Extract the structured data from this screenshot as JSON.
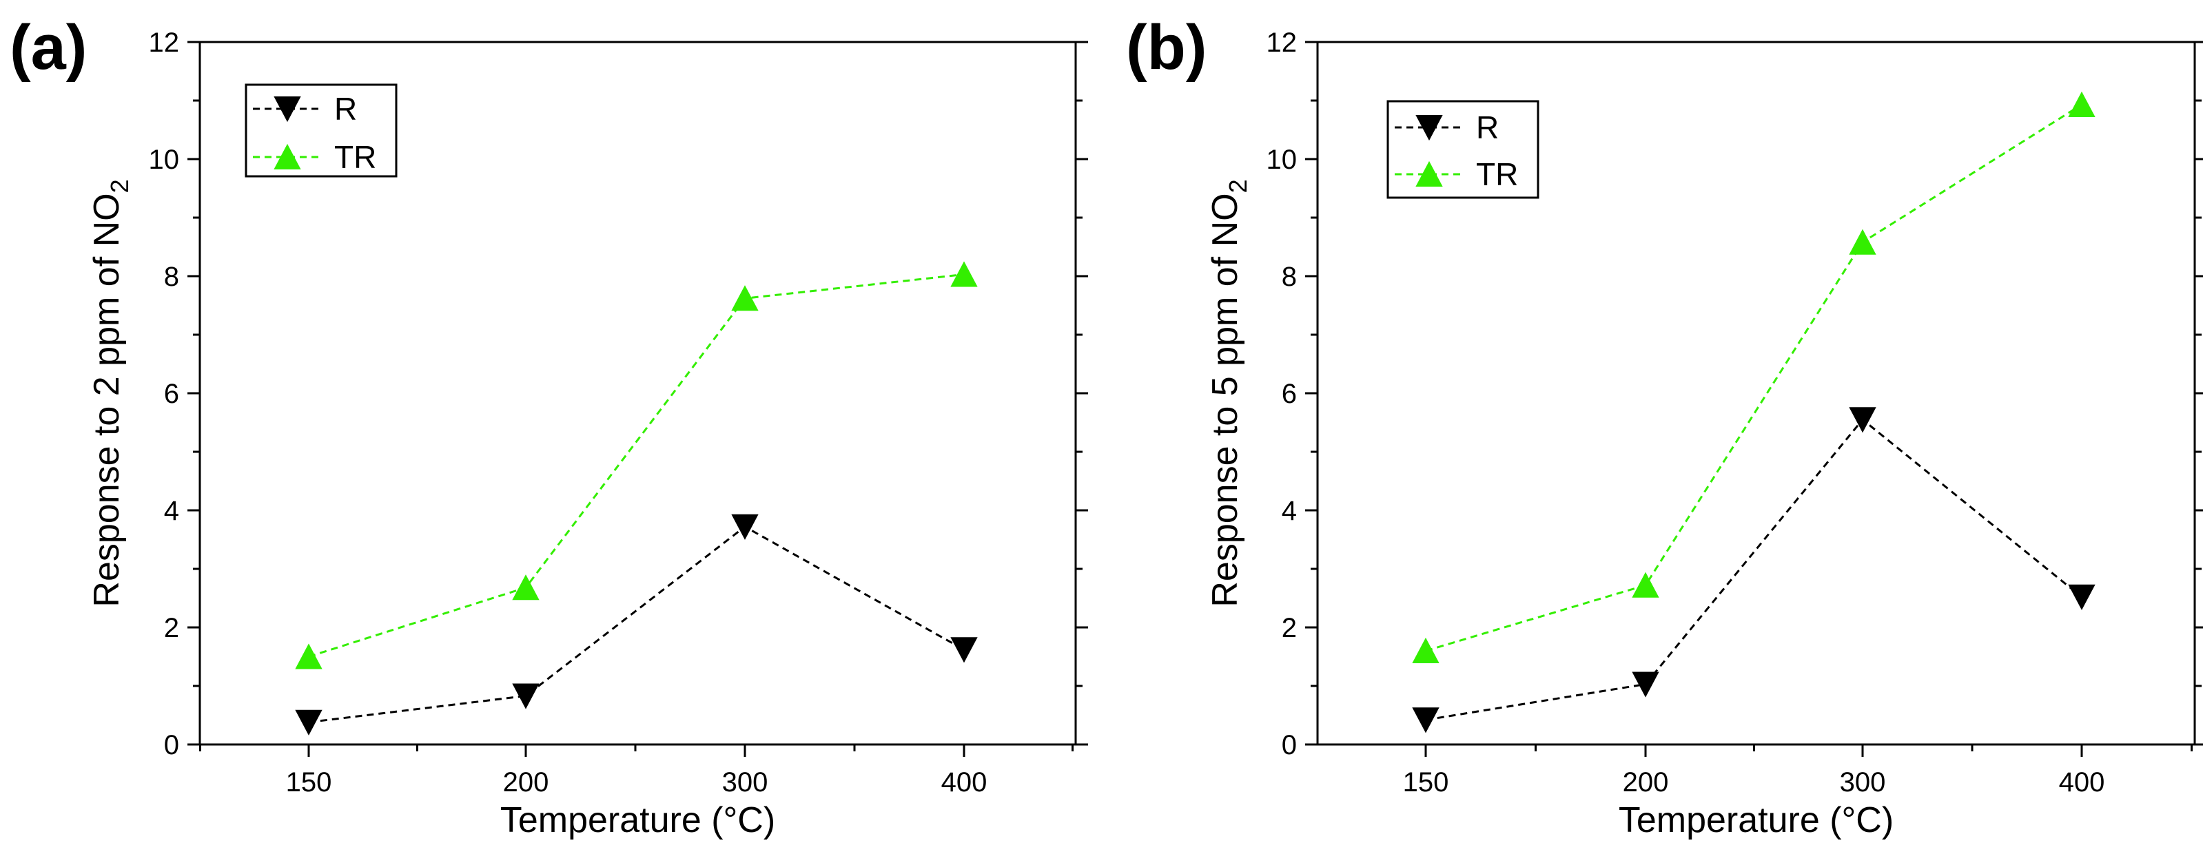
{
  "chart_data": [
    {
      "type": "line",
      "panel_label": "(a)",
      "categories": [
        "150",
        "200",
        "300",
        "400"
      ],
      "xlabel": "Temperature (°C)",
      "ylabel": {
        "main": "Response to 2 ppm of NO",
        "sub": "2"
      },
      "ylim": [
        0,
        12
      ],
      "yticks": [
        "0",
        "2",
        "4",
        "6",
        "8",
        "10",
        "12"
      ],
      "legend_position": "top-left",
      "series": [
        {
          "name": "R",
          "marker": "triangle-down",
          "color": "#000000",
          "values": [
            0.38,
            0.83,
            3.72,
            1.62
          ]
        },
        {
          "name": "TR",
          "marker": "triangle-up",
          "color": "#33ee00",
          "values": [
            1.5,
            2.68,
            7.62,
            8.03
          ]
        }
      ]
    },
    {
      "type": "line",
      "panel_label": "(b)",
      "categories": [
        "150",
        "200",
        "300",
        "400"
      ],
      "xlabel": "Temperature (°C)",
      "ylabel": {
        "main": "Response to 5 ppm of NO",
        "sub": "2"
      },
      "ylim": [
        0,
        12
      ],
      "yticks": [
        "0",
        "2",
        "4",
        "6",
        "8",
        "10",
        "12"
      ],
      "legend_position": "top-left",
      "series": [
        {
          "name": "R",
          "marker": "triangle-down",
          "color": "#000000",
          "values": [
            0.42,
            1.03,
            5.55,
            2.52
          ]
        },
        {
          "name": "TR",
          "marker": "triangle-up",
          "color": "#33ee00",
          "values": [
            1.6,
            2.72,
            8.58,
            10.93
          ]
        }
      ]
    }
  ]
}
